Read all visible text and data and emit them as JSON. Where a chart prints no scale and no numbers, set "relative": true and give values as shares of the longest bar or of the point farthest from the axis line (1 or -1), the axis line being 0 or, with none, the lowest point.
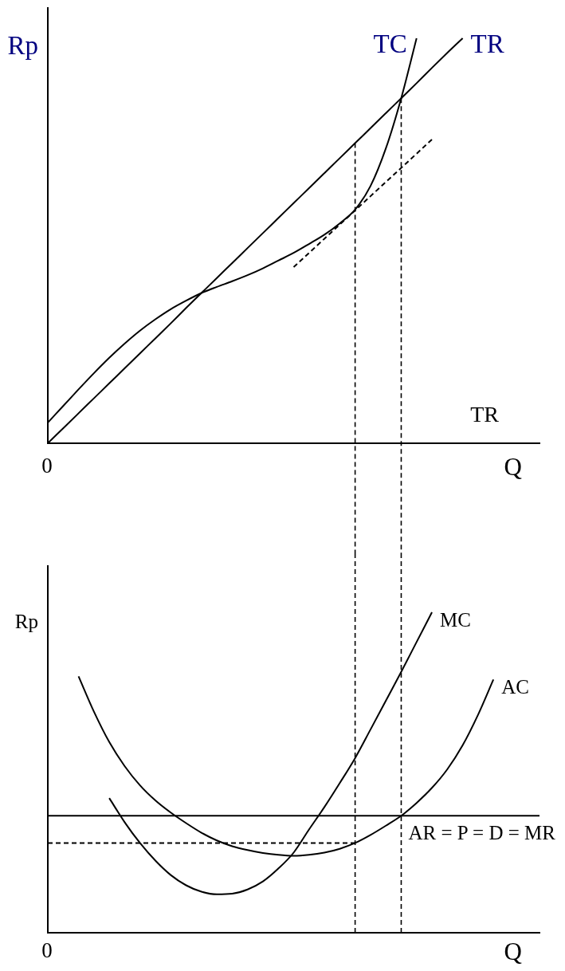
{
  "chart_data": [
    {
      "type": "line",
      "relative": true,
      "ylabel": "Rp",
      "xlabel": "Q",
      "categories": [
        null,
        null,
        null,
        null,
        null,
        null,
        null,
        null,
        null,
        null,
        null,
        null,
        null,
        null,
        null,
        null,
        null,
        null,
        null,
        null,
        null,
        null,
        null,
        null,
        null,
        null,
        null,
        null,
        null,
        null,
        null,
        null,
        null
      ],
      "series": [
        {
          "name": "TC",
          "color": "#000000",
          "values": [
            0.051,
            0.092,
            0.133,
            0.173,
            0.211,
            0.246,
            0.278,
            0.306,
            0.331,
            0.352,
            0.371,
            0.386,
            0.4,
            0.415,
            0.432,
            0.451,
            0.47,
            0.492,
            0.515,
            0.543,
            0.577,
            0.635,
            0.728,
            0.852,
            1,
            null,
            null,
            null,
            null,
            null,
            null,
            null,
            null
          ]
        },
        {
          "name": "TR",
          "color": "#000000",
          "values": [
            0,
            0.037,
            0.074,
            0.111,
            0.148,
            0.185,
            0.222,
            0.259,
            0.296,
            0.334,
            0.371,
            0.408,
            0.445,
            0.482,
            0.519,
            0.556,
            0.593,
            0.63,
            0.667,
            0.704,
            0.741,
            0.778,
            0.815,
            0.852,
            0.889,
            0.927,
            0.964,
            1,
            null,
            null,
            null,
            null,
            null
          ]
        },
        {
          "color": "#000000",
          "line_style": "dashed",
          "values": [
            null,
            null,
            null,
            null,
            null,
            null,
            null,
            null,
            null,
            null,
            null,
            null,
            null,
            null,
            null,
            null,
            0.435,
            0.47,
            0.505,
            0.54,
            0.575,
            0.61,
            0.645,
            0.68,
            0.715,
            0.75,
            null,
            null,
            null,
            null,
            null,
            null,
            null
          ]
        }
      ],
      "annotations": [
        "0",
        "TR"
      ]
    },
    {
      "type": "line",
      "relative": true,
      "ylabel": "Rp",
      "xlabel": "Q",
      "categories": [
        null,
        null,
        null,
        null,
        null,
        null,
        null,
        null,
        null,
        null,
        null,
        null,
        null,
        null,
        null,
        null,
        null,
        null,
        null,
        null,
        null,
        null,
        null,
        null,
        null,
        null,
        null,
        null,
        null,
        null,
        null,
        null,
        null
      ],
      "series": [
        {
          "name": "MC",
          "color": "#000000",
          "values": [
            null,
            null,
            null,
            null,
            0.42,
            0.345,
            0.28,
            0.225,
            0.18,
            0.148,
            0.128,
            0.12,
            0.122,
            0.135,
            0.16,
            0.2,
            0.25,
            0.322,
            0.392,
            0.467,
            0.545,
            0.634,
            0.724,
            0.814,
            0.907,
            1,
            null,
            null,
            null,
            null,
            null,
            null,
            null
          ]
        },
        {
          "name": "AC",
          "color": "#000000",
          "values": [
            null,
            null,
            0.8,
            0.69,
            0.595,
            0.52,
            0.46,
            0.413,
            0.375,
            0.342,
            0.312,
            0.288,
            0.27,
            0.258,
            0.249,
            0.243,
            0.24,
            0.243,
            0.25,
            0.262,
            0.28,
            0.305,
            0.334,
            0.365,
            0.405,
            0.452,
            0.51,
            0.585,
            0.68,
            0.79,
            null,
            null,
            null
          ]
        },
        {
          "name": "AR = P = D = MR",
          "color": "#000000",
          "values": [
            0.365,
            0.365,
            0.365,
            0.365,
            0.365,
            0.365,
            0.365,
            0.365,
            0.365,
            0.365,
            0.365,
            0.365,
            0.365,
            0.365,
            0.365,
            0.365,
            0.365,
            0.365,
            0.365,
            0.365,
            0.365,
            0.365,
            0.365,
            0.365,
            0.365,
            0.365,
            0.365,
            0.365,
            0.365,
            0.365,
            0.365,
            0.365,
            0.365
          ]
        },
        {
          "color": "#000000",
          "line_style": "dashed",
          "values": [
            0.28,
            0.28,
            0.28,
            0.28,
            0.28,
            0.28,
            0.28,
            0.28,
            0.28,
            0.28,
            0.28,
            0.28,
            0.28,
            0.28,
            0.28,
            0.28,
            0.28,
            0.28,
            0.28,
            0.28,
            0.28,
            null,
            null,
            null,
            null,
            null,
            null,
            null,
            null,
            null,
            null,
            null,
            null
          ]
        }
      ],
      "annotations": [
        "0"
      ]
    }
  ]
}
